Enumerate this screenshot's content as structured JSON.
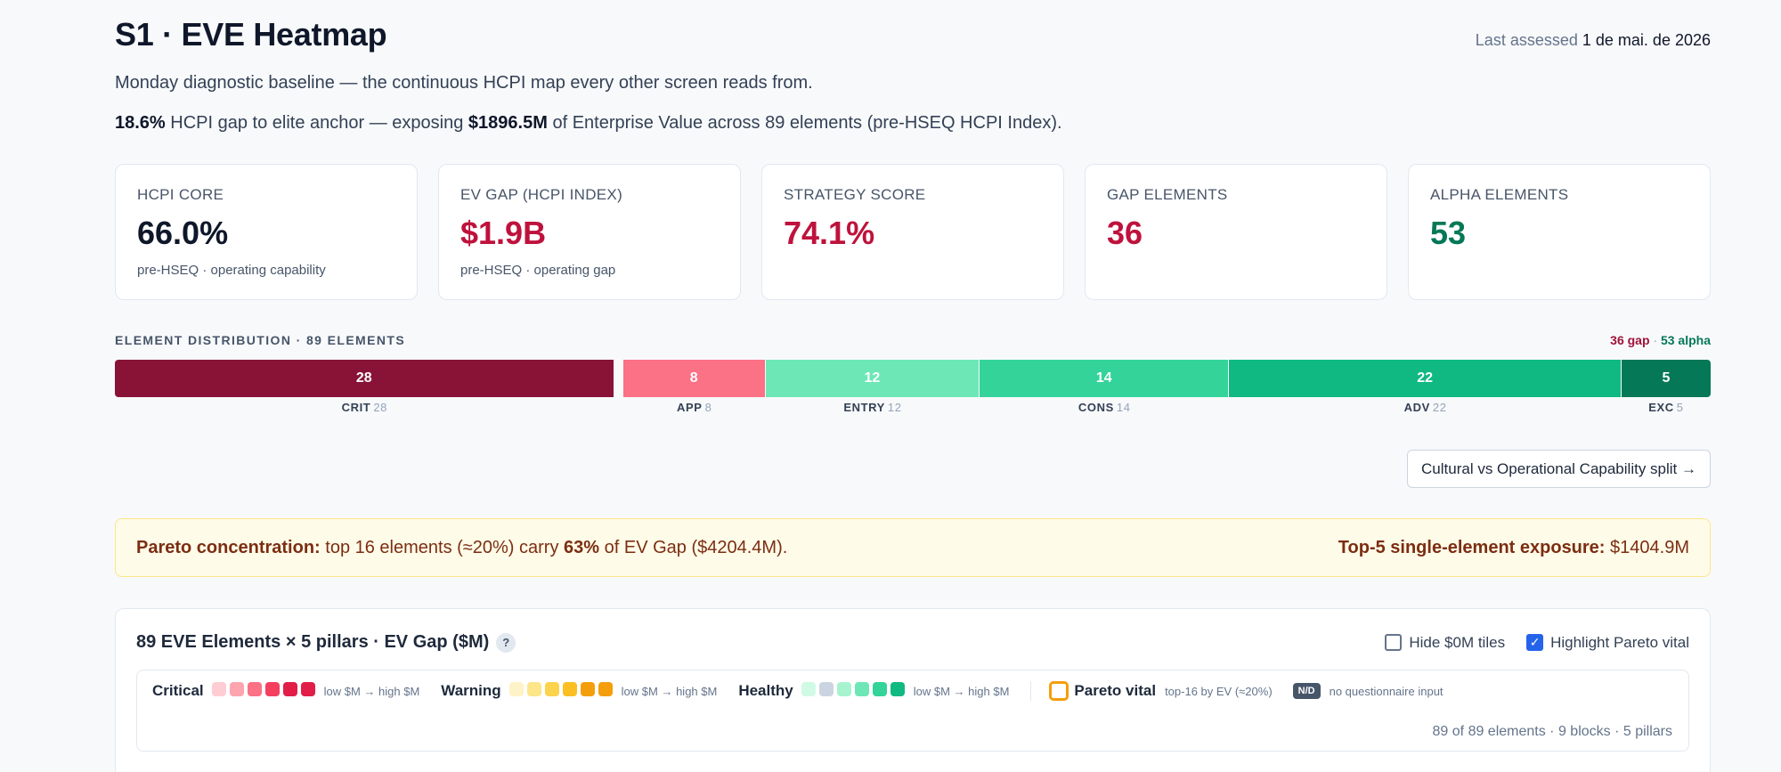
{
  "header": {
    "title": "S1 · EVE Heatmap",
    "last_assessed_label": "Last assessed",
    "last_assessed_date": "1 de mai. de 2026"
  },
  "subtitle": "Monday diagnostic baseline — the continuous HCPI map every other screen reads from.",
  "gapline": {
    "gap_pct": "18.6%",
    "text1": "HCPI gap to elite anchor — exposing",
    "ev_amount": "$1896.5M",
    "text2": "of Enterprise Value across 89 elements (pre-HSEQ HCPI Index)."
  },
  "kpis": [
    {
      "label": "HCPI CORE",
      "value": "66.0%",
      "sub": "pre-HSEQ · operating capability",
      "color": "#0f172a"
    },
    {
      "label": "EV GAP (HCPI INDEX)",
      "value": "$1.9B",
      "sub": "pre-HSEQ · operating gap",
      "color": "#be123c"
    },
    {
      "label": "STRATEGY SCORE",
      "value": "74.1%",
      "sub": "",
      "color": "#be123c"
    },
    {
      "label": "GAP ELEMENTS",
      "value": "36",
      "sub": "",
      "color": "#be123c"
    },
    {
      "label": "ALPHA ELEMENTS",
      "value": "53",
      "sub": "",
      "color": "#047857"
    }
  ],
  "distribution": {
    "title": "ELEMENT DISTRIBUTION · 89 ELEMENTS",
    "gap_label": "36 gap",
    "separator": "·",
    "alpha_label": "53 alpha",
    "segments": [
      {
        "key": "CRIT",
        "count": 28,
        "count_text": "28",
        "color": "#881337"
      },
      {
        "key": "APP",
        "count": 8,
        "count_text": "8",
        "color": "#fb7185"
      },
      {
        "key": "ENTRY",
        "count": 12,
        "count_text": "12",
        "color": "#6ee7b7"
      },
      {
        "key": "CONS",
        "count": 14,
        "count_text": "14",
        "color": "#34d399"
      },
      {
        "key": "ADV",
        "count": 22,
        "count_text": "22",
        "color": "#10b981"
      },
      {
        "key": "EXC",
        "count": 5,
        "count_text": "5",
        "color": "#047857"
      }
    ]
  },
  "split_button": "Cultural vs Operational Capability split →",
  "pareto": {
    "label": "Pareto concentration:",
    "text1": "top 16 elements (≈20%) carry",
    "pct": "63%",
    "text2": "of EV Gap ($4204.4M).",
    "top5_label": "Top-5 single-element exposure:",
    "top5_value": "$1404.9M"
  },
  "panel": {
    "title": "89 EVE Elements × 5 pillars · EV Gap ($M)",
    "help": "?",
    "hide_zero": "Hide $0M tiles",
    "highlight_pareto": "Highlight Pareto vital",
    "legend": {
      "critical": "Critical",
      "critical_colors": [
        "#fecdd3",
        "#fda4af",
        "#fb7185",
        "#f43f5e",
        "#e11d48",
        "#e11d48"
      ],
      "warning": "Warning",
      "warning_colors": [
        "#fef3c7",
        "#fde68a",
        "#fcd34d",
        "#fbbf24",
        "#f59e0b",
        "#f59e0b"
      ],
      "healthy": "Healthy",
      "healthy_colors": [
        "#d1fae5",
        "#cbd5e1",
        "#a7f3d0",
        "#6ee7b7",
        "#34d399",
        "#10b981"
      ],
      "range": "low $M → high $M",
      "pareto_vital": "Pareto vital",
      "pareto_desc": "top-16 by EV (≈20%)",
      "nd": "N/D",
      "nd_desc": "no questionnaire input",
      "counts": "89 of 89 elements · 9 blocks · 5 pillars"
    }
  }
}
